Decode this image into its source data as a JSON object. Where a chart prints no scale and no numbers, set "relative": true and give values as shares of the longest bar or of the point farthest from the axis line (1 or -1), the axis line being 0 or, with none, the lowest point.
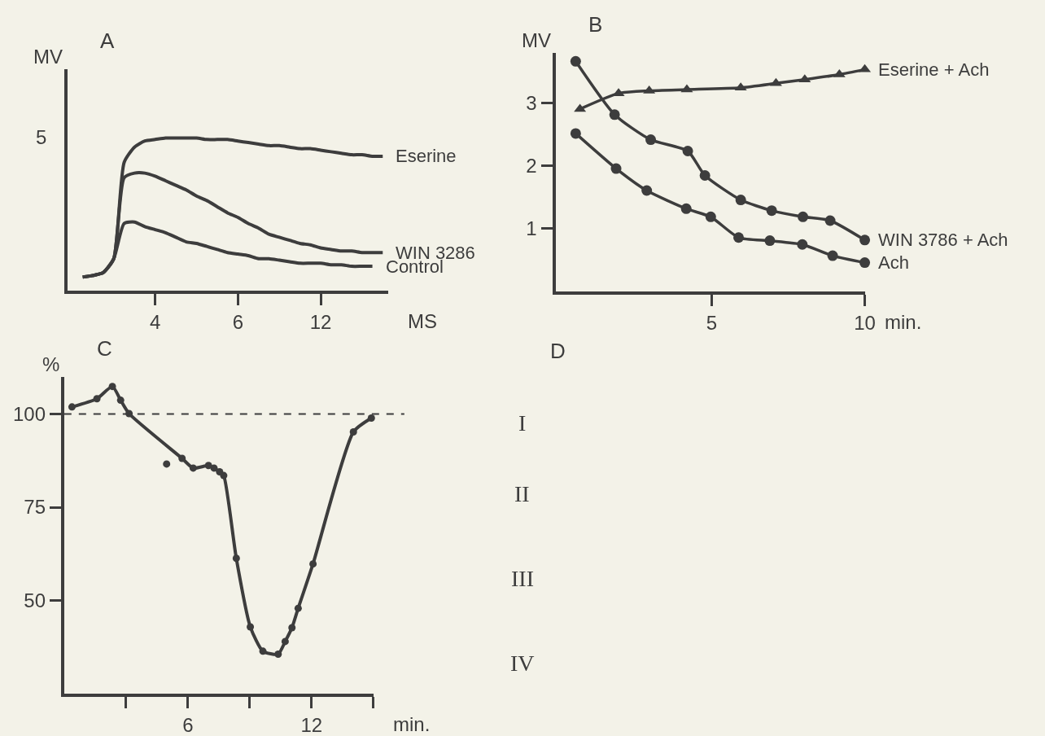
{
  "chart_data": [
    {
      "type": "line",
      "title": "A",
      "xlabel": "MS",
      "ylabel": "MV",
      "relative": true,
      "annotations": [
        "5"
      ],
      "categories": [
        null,
        null,
        null,
        null,
        null,
        null,
        null,
        null,
        "4",
        null,
        null,
        null,
        null,
        null,
        null,
        null,
        "6",
        null,
        null,
        null,
        null,
        null,
        null,
        null,
        "12",
        null,
        null,
        null,
        null,
        null,
        null
      ],
      "grid": false,
      "marker": "none",
      "line_style": "solid",
      "series": [
        {
          "name": "Eserine",
          "color": "#3d3d3d",
          "values": [
            null,
            0.09,
            0.1,
            0.12,
            0.21,
            0.84,
            0.94,
            0.98,
            0.99,
            1.0,
            1,
            1,
            1.0,
            0.99,
            0.99,
            0.99,
            0.98,
            0.97,
            0.96,
            0.95,
            0.95,
            0.94,
            0.93,
            0.93,
            0.92,
            0.91,
            0.9,
            0.89,
            0.89,
            0.88,
            0.88
          ]
        },
        {
          "name": "WIN 3286",
          "color": "#3d3d3d",
          "values": [
            null,
            0.09,
            0.1,
            0.12,
            0.21,
            0.74,
            0.77,
            0.77,
            0.75,
            0.72,
            0.69,
            0.66,
            0.62,
            0.59,
            0.55,
            0.51,
            0.48,
            0.44,
            0.41,
            0.37,
            0.35,
            0.33,
            0.31,
            0.3,
            0.28,
            0.27,
            0.26,
            0.26,
            0.25,
            0.25,
            0.25
          ]
        },
        {
          "name": "Control",
          "color": "#3d3d3d",
          "values": [
            null,
            0.09,
            0.1,
            0.12,
            0.21,
            0.44,
            0.45,
            0.42,
            0.4,
            0.38,
            0.35,
            0.32,
            0.31,
            0.29,
            0.27,
            0.25,
            0.24,
            0.23,
            0.21,
            0.21,
            0.2,
            0.19,
            0.18,
            0.18,
            0.18,
            0.17,
            0.17,
            0.16,
            0.16,
            0.16,
            null
          ]
        }
      ]
    },
    {
      "type": "line",
      "title": "B",
      "xlabel": "min.",
      "ylabel": "MV",
      "xlim": [
        -0.1,
        10
      ],
      "ylim": [
        0,
        3.8
      ],
      "xticks": [
        5,
        10
      ],
      "yticks": [
        1,
        2,
        3
      ],
      "grid": false,
      "line_style": "solid",
      "series": [
        {
          "name": "Eserine + Ach",
          "color": "#3d3d3d",
          "marker": "triangle",
          "x": [
            0.7,
            1.96,
            2.96,
            4.19,
            5.95,
            7.1,
            8.04,
            9.17,
            10
          ],
          "values": [
            2.91,
            3.16,
            3.2,
            3.22,
            3.25,
            3.32,
            3.38,
            3.46,
            3.54
          ]
        },
        {
          "name": "WIN 3786 + Ach",
          "color": "#3d3d3d",
          "marker": "circle",
          "x": [
            0.56,
            1.83,
            3.01,
            4.22,
            4.78,
            5.95,
            6.96,
            7.98,
            8.87,
            10
          ],
          "values": [
            3.67,
            2.82,
            2.42,
            2.24,
            1.85,
            1.46,
            1.29,
            1.19,
            1.13,
            0.82
          ]
        },
        {
          "name": "Ach",
          "color": "#3d3d3d",
          "marker": "circle",
          "x": [
            0.56,
            1.88,
            2.88,
            4.17,
            4.97,
            5.88,
            6.9,
            7.96,
            8.95,
            10
          ],
          "values": [
            2.52,
            1.96,
            1.61,
            1.32,
            1.19,
            0.86,
            0.81,
            0.75,
            0.57,
            0.46
          ]
        }
      ]
    },
    {
      "type": "line",
      "title": "C",
      "xlabel": "min.",
      "ylabel": "%",
      "xlim": [
        0,
        15
      ],
      "ylim": [
        25,
        110
      ],
      "xticks": [
        {
          "value": 3,
          "label": null
        },
        6,
        {
          "value": 9,
          "label": null
        },
        12,
        {
          "value": 15,
          "label": null
        }
      ],
      "yticks": [
        50,
        75,
        100
      ],
      "grid": false,
      "marker": "circle",
      "line_style": "solid",
      "ref_lines": [
        {
          "axis": "y",
          "value": 100,
          "label": null,
          "line_style": "dashed",
          "color": "#3d3d3d"
        }
      ],
      "series": [
        {
          "color": "#3d3d3d",
          "x": [
            0.38,
            1.59,
            2.34,
            2.74,
            3.15,
            5.72,
            6.26,
            7.0,
            7.27,
            7.54,
            7.74,
            8.35,
            9.03,
            9.64,
            10.38,
            10.72,
            11.05,
            11.35,
            12.07,
            14.03,
            14.9
          ],
          "values": [
            101.9,
            104.1,
            107.4,
            103.7,
            100.1,
            88.1,
            85.5,
            86.2,
            85.5,
            84.5,
            83.5,
            61.3,
            42.9,
            36.4,
            35.6,
            39.0,
            42.7,
            47.9,
            59.8,
            95.2,
            98.9
          ]
        },
        {
          "type": "scatter",
          "color": "#3d3d3d",
          "x": [
            4.97
          ],
          "values": [
            86.6
          ]
        }
      ]
    },
    {
      "type": "other",
      "title": "D",
      "annotations": [
        "I",
        "II",
        "III",
        "IV"
      ]
    }
  ]
}
